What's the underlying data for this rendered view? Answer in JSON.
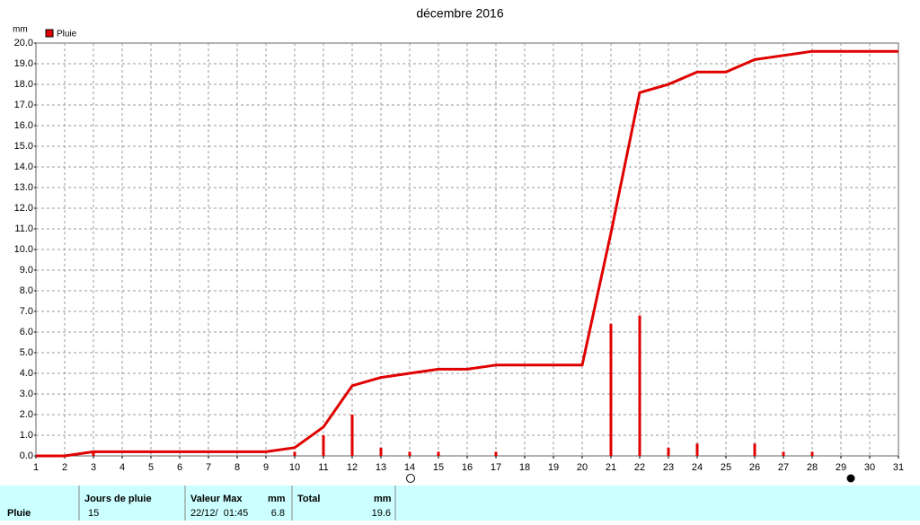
{
  "chart_data": {
    "type": "bar-cumulative",
    "title": "décembre 2016",
    "y_label": "mm",
    "x": [
      1,
      2,
      3,
      4,
      5,
      6,
      7,
      8,
      9,
      10,
      11,
      12,
      13,
      14,
      15,
      16,
      17,
      18,
      19,
      20,
      21,
      22,
      23,
      24,
      25,
      26,
      27,
      28,
      29,
      30,
      31
    ],
    "xlim": [
      1,
      31
    ],
    "xticks": [
      1,
      2,
      3,
      4,
      5,
      6,
      7,
      8,
      9,
      10,
      11,
      12,
      13,
      14,
      15,
      16,
      17,
      18,
      19,
      20,
      21,
      22,
      23,
      24,
      25,
      26,
      27,
      28,
      29,
      30,
      31
    ],
    "ylim": [
      0,
      20
    ],
    "yticks": [
      {
        "value": 0,
        "label": "0.0"
      },
      {
        "value": 1,
        "label": "1.0"
      },
      {
        "value": 2,
        "label": "2.0"
      },
      {
        "value": 3,
        "label": "3.0"
      },
      {
        "value": 4,
        "label": "4.0"
      },
      {
        "value": 5,
        "label": "5.0"
      },
      {
        "value": 6,
        "label": "6.0"
      },
      {
        "value": 7,
        "label": "7.0"
      },
      {
        "value": 8,
        "label": "8.0"
      },
      {
        "value": 9,
        "label": "9.0"
      },
      {
        "value": 10,
        "label": "10.0"
      },
      {
        "value": 11,
        "label": "11.0"
      },
      {
        "value": 12,
        "label": "12.0"
      },
      {
        "value": 13,
        "label": "13.0"
      },
      {
        "value": 14,
        "label": "14.0"
      },
      {
        "value": 15,
        "label": "15.0"
      },
      {
        "value": 16,
        "label": "16.0"
      },
      {
        "value": 17,
        "label": "17.0"
      },
      {
        "value": 18,
        "label": "18.0"
      },
      {
        "value": 19,
        "label": "19.0"
      },
      {
        "value": 20,
        "label": "20.0"
      }
    ],
    "grid": true,
    "series": [
      {
        "name": "Pluie",
        "color": "#e00000",
        "values": [
          0,
          0,
          0.2,
          0,
          0,
          0,
          0,
          0,
          0,
          0.2,
          1.0,
          2.0,
          0.4,
          0.2,
          0.2,
          0,
          0.2,
          0,
          0,
          0,
          6.4,
          6.8,
          0.4,
          0.6,
          0,
          0.6,
          0.2,
          0.2,
          0,
          0,
          0
        ]
      }
    ],
    "cumulative": {
      "color": "#e00000",
      "values": [
        0,
        0,
        0.2,
        0.2,
        0.2,
        0.2,
        0.2,
        0.2,
        0.2,
        0.4,
        1.4,
        3.4,
        3.8,
        4.0,
        4.2,
        4.2,
        4.4,
        4.4,
        4.4,
        4.4,
        10.8,
        17.6,
        18.0,
        18.6,
        18.6,
        19.2,
        19.4,
        19.6,
        19.6,
        19.6,
        19.6
      ]
    }
  },
  "summary": {
    "row_label": "Pluie",
    "headers": [
      "Jours de pluie",
      "Valeur Max",
      "mm",
      "Total",
      "mm"
    ],
    "values": [
      "15",
      "22/12/  01:45",
      "6.8",
      "19.6"
    ]
  }
}
